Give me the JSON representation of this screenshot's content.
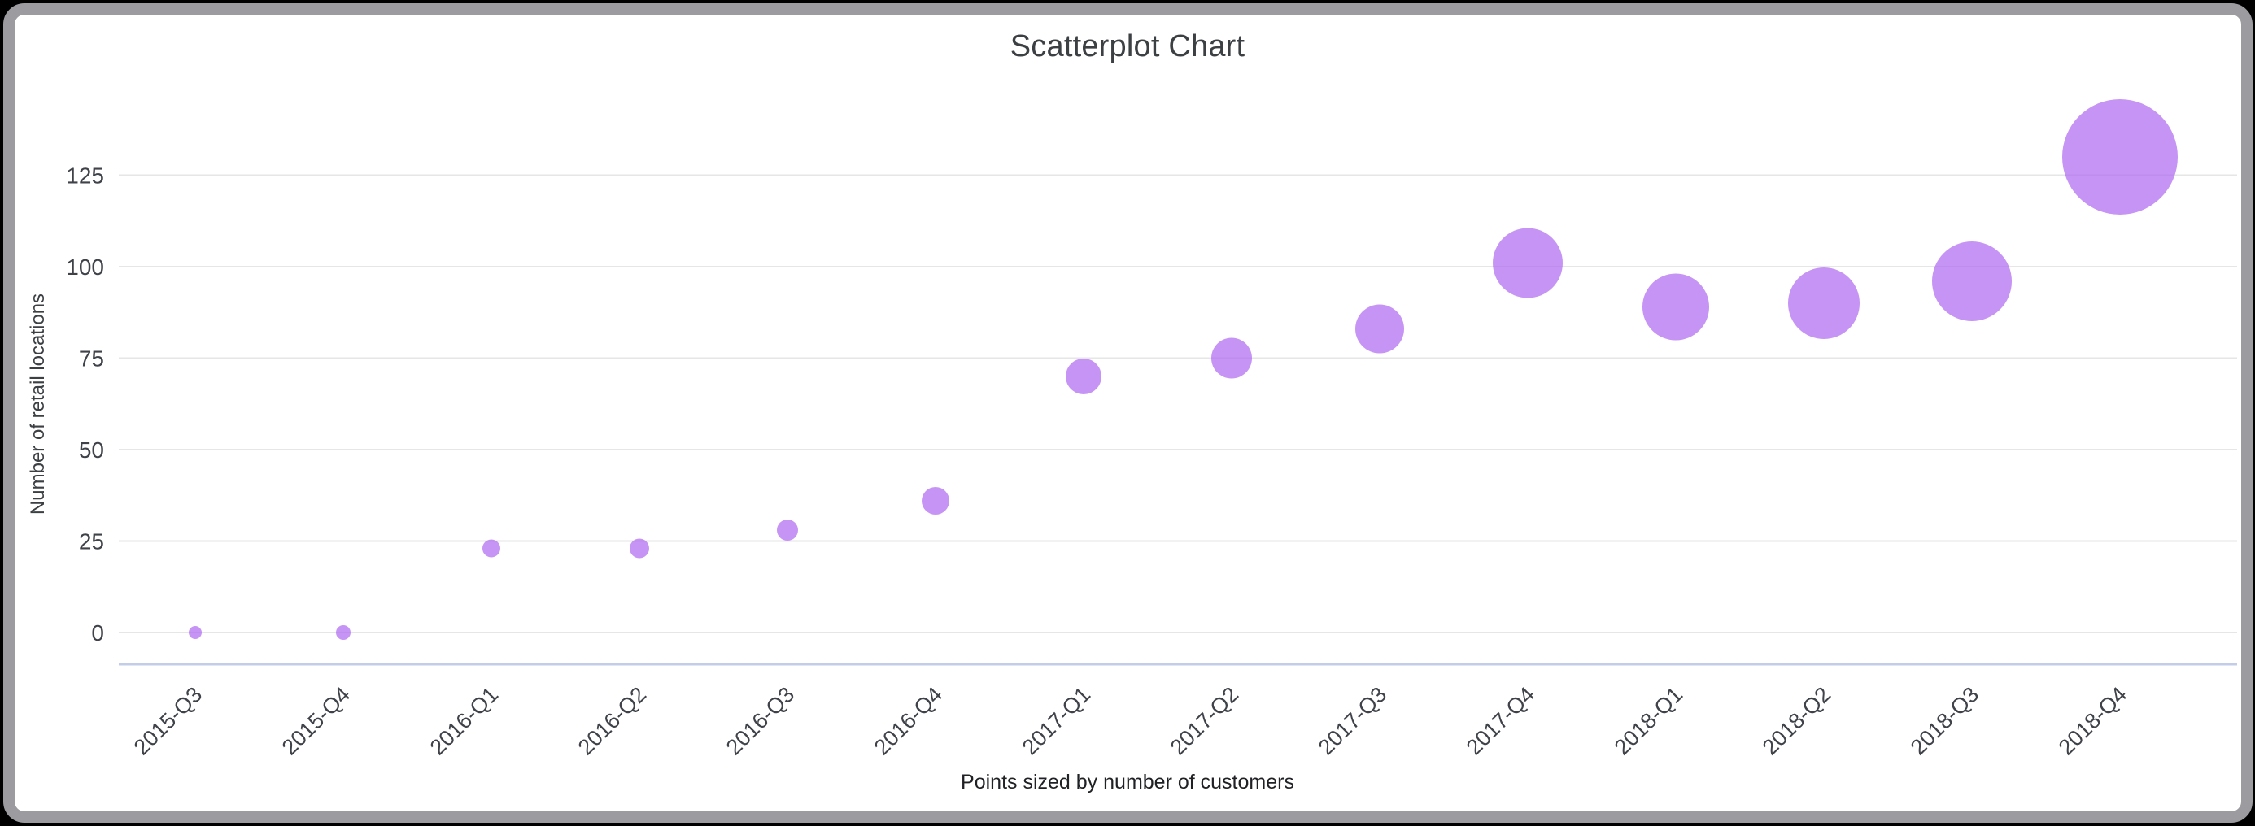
{
  "page": {
    "background_color": "#000000",
    "card_border_color": "#9b9ba0",
    "card_background_color": "#ffffff"
  },
  "chart_data": {
    "type": "scatter",
    "title": "Scatterplot Chart",
    "xlabel": "",
    "ylabel": "Number of retail locations",
    "caption": "Points sized by number of customers",
    "categories": [
      "2015-Q3",
      "2015-Q4",
      "2016-Q1",
      "2016-Q2",
      "2016-Q3",
      "2016-Q4",
      "2017-Q1",
      "2017-Q2",
      "2017-Q3",
      "2017-Q4",
      "2018-Q1",
      "2018-Q2",
      "2018-Q3",
      "2018-Q4"
    ],
    "series": [
      {
        "name": "Number of retail locations",
        "values": [
          0,
          0,
          23,
          23,
          28,
          36,
          70,
          75,
          83,
          101,
          89,
          90,
          96,
          130
        ]
      }
    ],
    "size_encoding": "number of customers",
    "point_radius_px": [
      8,
      9,
      11,
      12,
      13,
      17,
      22,
      25,
      30,
      43,
      41,
      44,
      49,
      71
    ],
    "yticks": [
      0,
      25,
      50,
      75,
      100,
      125
    ],
    "ylim": [
      -9,
      137
    ],
    "grid": true,
    "legend": "none",
    "point_color": "#ae6bf0",
    "point_opacity": 0.72,
    "gridline_color": "#e6e6e6",
    "baseline_color": "#c3cde9",
    "text_color": "#3c4043"
  }
}
